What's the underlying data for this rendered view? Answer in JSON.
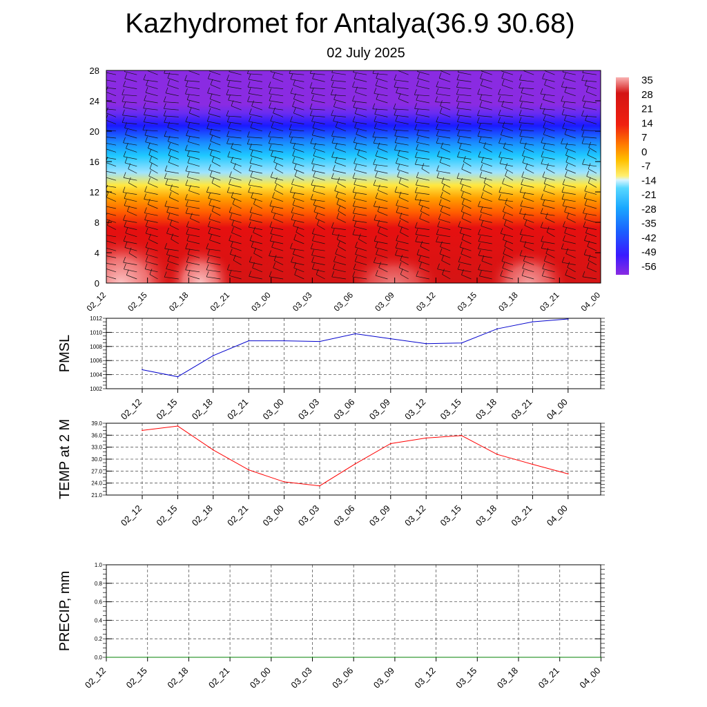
{
  "title": "Kazhydromet for Antalya(36.9 30.68)",
  "subtitle": "02 July 2025",
  "time_labels": [
    "02_12",
    "02_15",
    "02_18",
    "02_21",
    "03_00",
    "03_03",
    "03_06",
    "03_09",
    "03_12",
    "03_15",
    "03_18",
    "03_21",
    "04_00"
  ],
  "chart_data": [
    {
      "type": "heatmap",
      "description_of_field": "temperature vs height with wind barbs",
      "x": [
        "02_12",
        "02_15",
        "02_18",
        "02_21",
        "03_00",
        "03_03",
        "03_06",
        "03_09",
        "03_12",
        "03_15",
        "03_18",
        "03_21",
        "04_00"
      ],
      "y_ticks": [
        0,
        4,
        8,
        12,
        16,
        20,
        24,
        28
      ],
      "ylim": [
        0,
        28
      ],
      "colorbar_ticks": [
        35,
        28,
        21,
        14,
        7,
        0,
        -7,
        -14,
        -21,
        -28,
        -35,
        -42,
        -49,
        -56
      ],
      "colorbar_range": [
        -60,
        38
      ],
      "colors": {
        "hot": "#f9b2b2",
        "red": "#e01010",
        "orange": "#ff7a00",
        "yellow": "#ffea40",
        "cyan": "#1ec8ff",
        "blue": "#1a1aff",
        "purple": "#8a2be2"
      }
    },
    {
      "type": "line",
      "ylabel": "PMSL",
      "x": [
        "02_12",
        "02_15",
        "02_18",
        "02_21",
        "03_00",
        "03_03",
        "03_06",
        "03_09",
        "03_12",
        "03_15",
        "03_18",
        "03_21",
        "04_00"
      ],
      "series": [
        {
          "values": [
            1004.7,
            1003.7,
            1006.7,
            1008.8,
            1008.8,
            1008.7,
            1009.8,
            1009.1,
            1008.4,
            1008.5,
            1010.5,
            1011.5,
            1011.9
          ],
          "color": "#0000cc"
        }
      ],
      "ylim": [
        1002,
        1012
      ],
      "y_ticks": [
        1002,
        1004,
        1006,
        1008,
        1010,
        1012
      ],
      "grid": true
    },
    {
      "type": "line",
      "ylabel": "TEMP at 2 M",
      "x": [
        "02_12",
        "02_15",
        "02_18",
        "02_21",
        "03_00",
        "03_03",
        "03_06",
        "03_09",
        "03_12",
        "03_15",
        "03_18",
        "03_21",
        "04_00"
      ],
      "series": [
        {
          "values": [
            37.2,
            38.3,
            32.3,
            27.3,
            24.3,
            23.3,
            28.8,
            33.9,
            35.3,
            35.9,
            31.2,
            28.7,
            26.3
          ],
          "color": "#ff0000"
        }
      ],
      "ylim": [
        21,
        39
      ],
      "y_ticks": [
        "21.0",
        "24.0",
        "27.0",
        "30.0",
        "33.0",
        "36.0",
        "39.0"
      ],
      "grid": true
    },
    {
      "type": "line",
      "ylabel": "PRECIP, mm",
      "x": [
        "02_12",
        "02_15",
        "02_18",
        "02_21",
        "03_00",
        "03_03",
        "03_06",
        "03_09",
        "03_12",
        "03_15",
        "03_18",
        "03_21",
        "04_00"
      ],
      "series": [
        {
          "values": [
            0,
            0,
            0,
            0,
            0,
            0,
            0,
            0,
            0,
            0,
            0,
            0,
            0
          ],
          "color": "#008000"
        }
      ],
      "ylim": [
        0,
        1
      ],
      "y_ticks": [
        "0.0",
        "0.2",
        "0.4",
        "0.6",
        "0.8",
        "1.0"
      ],
      "grid": true
    }
  ]
}
